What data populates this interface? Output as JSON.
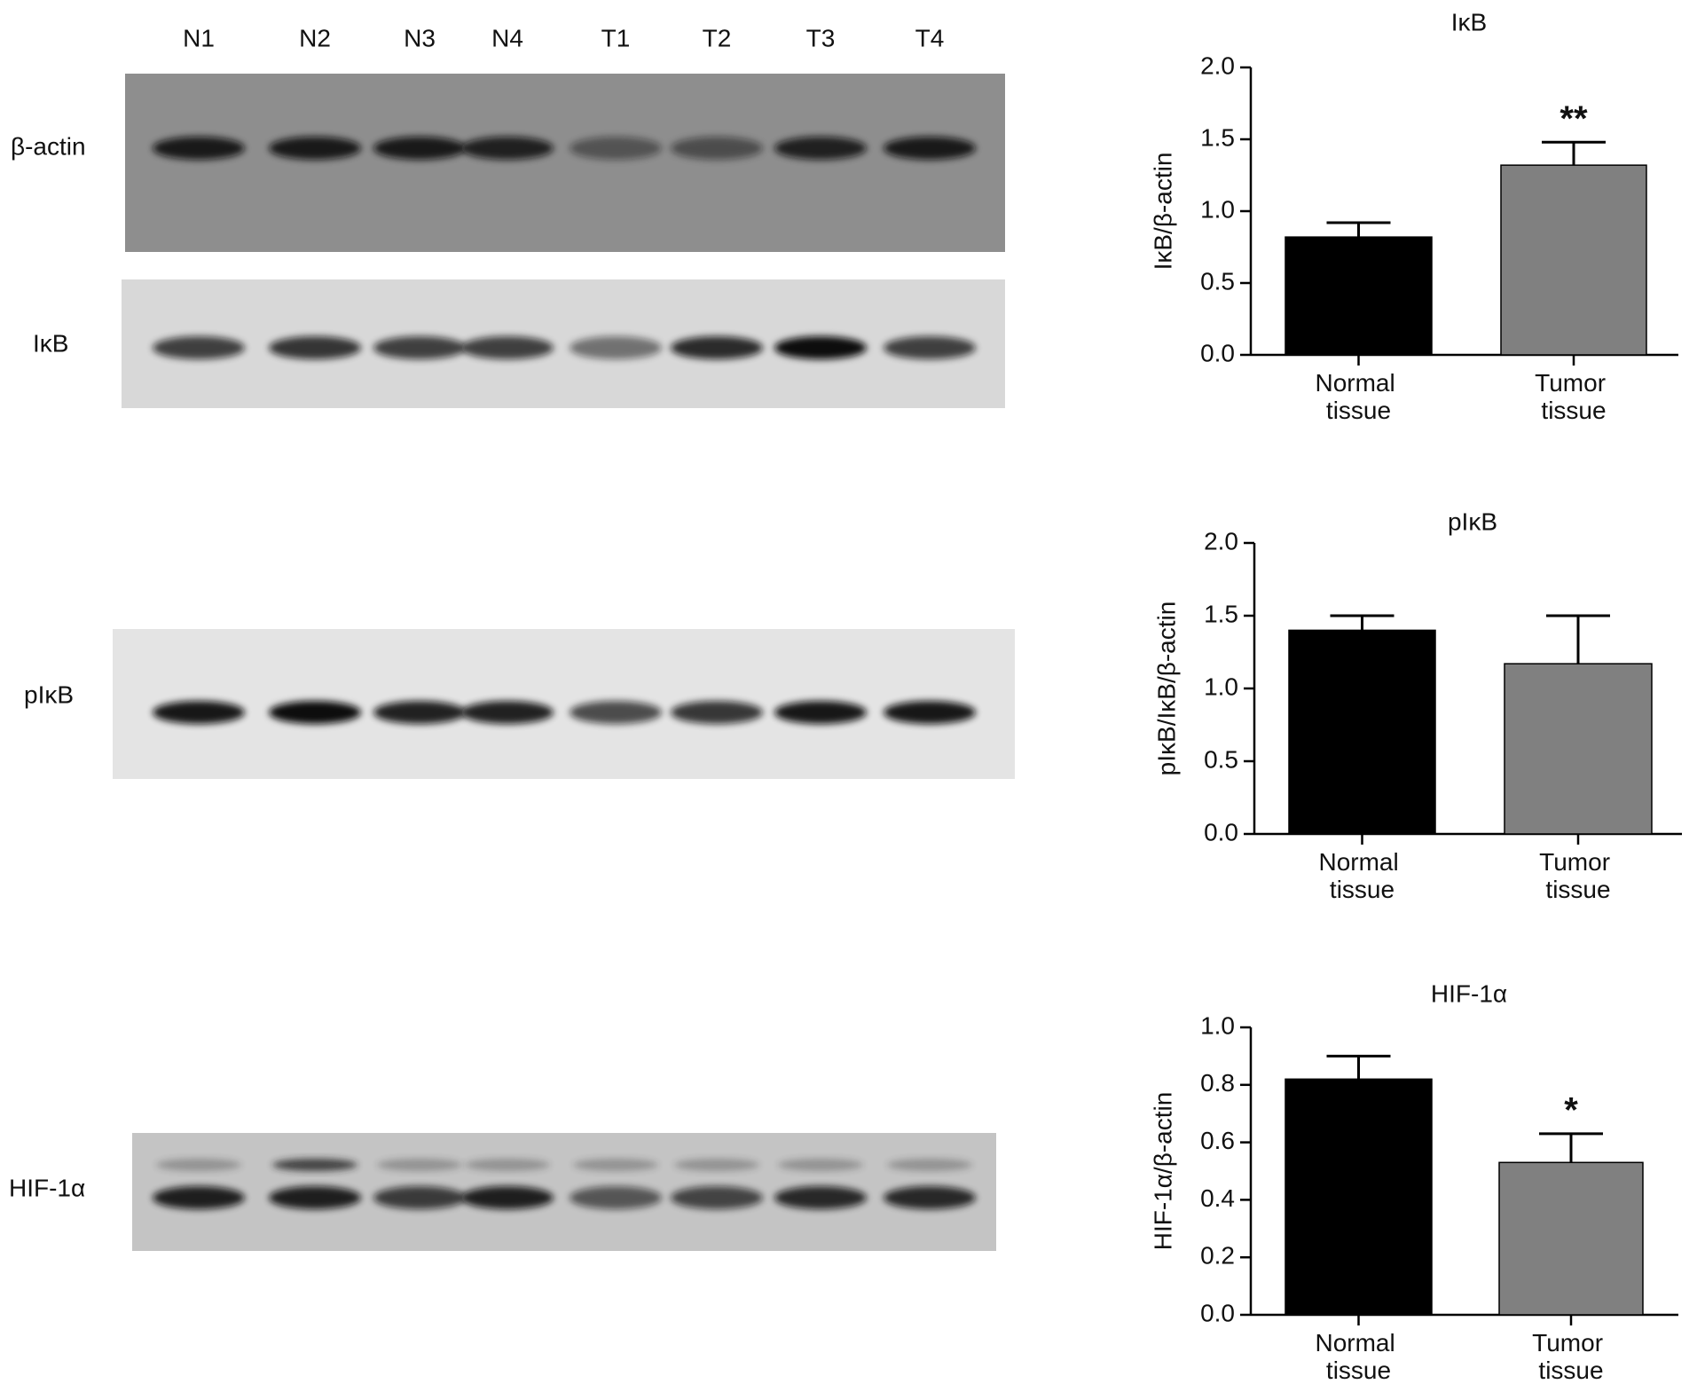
{
  "blot": {
    "lanes": [
      "N1",
      "N2",
      "N3",
      "N4",
      "T1",
      "T2",
      "T3",
      "T4"
    ],
    "rows": [
      "β-actin",
      "IκB",
      "pIκB",
      "HIF-1α"
    ]
  },
  "chart_data": [
    {
      "type": "bar",
      "title": "IκB",
      "y_label": "IκB/β-actin",
      "categories": [
        "Normal tissue",
        "Tumor tissue"
      ],
      "values": [
        0.82,
        1.32
      ],
      "errors": [
        0.1,
        0.16
      ],
      "colors": [
        "#000000",
        "#808080"
      ],
      "significance": {
        "Tumor tissue": "**"
      },
      "ylim": [
        0,
        2
      ],
      "yticks": [
        {
          "value": 0,
          "label": "0.0"
        },
        {
          "value": 0.5,
          "label": "0.5"
        },
        {
          "value": 1,
          "label": "1.0"
        },
        {
          "value": 1.5,
          "label": "1.5"
        },
        {
          "value": 2,
          "label": "2.0"
        }
      ]
    },
    {
      "type": "bar",
      "title": "pIκB",
      "y_label": "pIκB/IκB/β-actin",
      "categories": [
        "Normal tissue",
        "Tumor tissue"
      ],
      "values": [
        1.4,
        1.17
      ],
      "errors": [
        0.1,
        0.33
      ],
      "colors": [
        "#000000",
        "#808080"
      ],
      "ylim": [
        0,
        2
      ],
      "yticks": [
        {
          "value": 0,
          "label": "0.0"
        },
        {
          "value": 0.5,
          "label": "0.5"
        },
        {
          "value": 1,
          "label": "1.0"
        },
        {
          "value": 1.5,
          "label": "1.5"
        },
        {
          "value": 2,
          "label": "2.0"
        }
      ]
    },
    {
      "type": "bar",
      "title": "HIF-1α",
      "y_label": "HIF-1α/β-actin",
      "categories": [
        "Normal tissue",
        "Tumor tissue"
      ],
      "values": [
        0.82,
        0.53
      ],
      "errors": [
        0.08,
        0.1
      ],
      "colors": [
        "#000000",
        "#808080"
      ],
      "significance": {
        "Tumor tissue": "*"
      },
      "ylim": [
        0,
        1
      ],
      "yticks": [
        {
          "value": 0,
          "label": "0.0"
        },
        {
          "value": 0.2,
          "label": "0.2"
        },
        {
          "value": 0.4,
          "label": "0.4"
        },
        {
          "value": 0.6,
          "label": "0.6"
        },
        {
          "value": 0.8,
          "label": "0.8"
        },
        {
          "value": 1,
          "label": "1.0"
        }
      ]
    }
  ]
}
